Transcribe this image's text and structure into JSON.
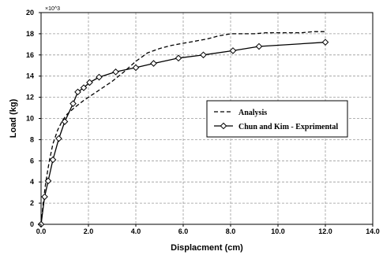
{
  "chart_data": {
    "type": "line",
    "xlabel": "Displacment (cm)",
    "ylabel": "Load (kg)",
    "y_multiplier": "×10^3",
    "xlim": [
      0,
      14
    ],
    "ylim": [
      0,
      20
    ],
    "x_ticks": [
      "0.0",
      "2.0",
      "4.0",
      "6.0",
      "8.0",
      "10.0",
      "12.0",
      "14.0"
    ],
    "y_ticks": [
      "0",
      "2",
      "4",
      "6",
      "8",
      "10",
      "12",
      "14",
      "16",
      "18",
      "20"
    ],
    "grid": true,
    "legend_position": "center-right",
    "series": [
      {
        "name": "Analysis",
        "style": "dashed",
        "color": "#000000",
        "x": [
          0,
          0.1,
          0.2,
          0.35,
          0.5,
          0.7,
          0.9,
          1.1,
          1.4,
          1.8,
          2.2,
          2.6,
          3.0,
          3.5,
          4.0,
          4.5,
          5.0,
          5.5,
          6.0,
          6.5,
          7.0,
          7.5,
          8.0,
          8.5,
          9.0,
          9.5,
          10.0,
          10.5,
          11.0,
          11.5,
          12.0
        ],
        "y": [
          0,
          2.2,
          4.0,
          6.0,
          7.6,
          8.9,
          9.8,
          10.4,
          11.0,
          11.7,
          12.3,
          12.9,
          13.5,
          14.4,
          15.4,
          16.2,
          16.6,
          16.9,
          17.1,
          17.3,
          17.5,
          17.8,
          18.0,
          18.0,
          18.0,
          18.1,
          18.1,
          18.1,
          18.1,
          18.2,
          18.2
        ]
      },
      {
        "name": "Chun and Kim - Exprimental",
        "style": "solid-diamond",
        "color": "#000000",
        "x": [
          0.0,
          0.15,
          0.3,
          0.5,
          0.75,
          1.0,
          1.35,
          1.55,
          1.8,
          2.05,
          2.45,
          3.15,
          4.0,
          4.75,
          5.8,
          6.85,
          8.1,
          9.2,
          12.0
        ],
        "y": [
          0.0,
          2.6,
          4.1,
          6.1,
          8.1,
          9.7,
          11.4,
          12.5,
          12.9,
          13.4,
          13.9,
          14.4,
          14.8,
          15.2,
          15.7,
          16.0,
          16.4,
          16.8,
          17.2
        ]
      }
    ]
  }
}
